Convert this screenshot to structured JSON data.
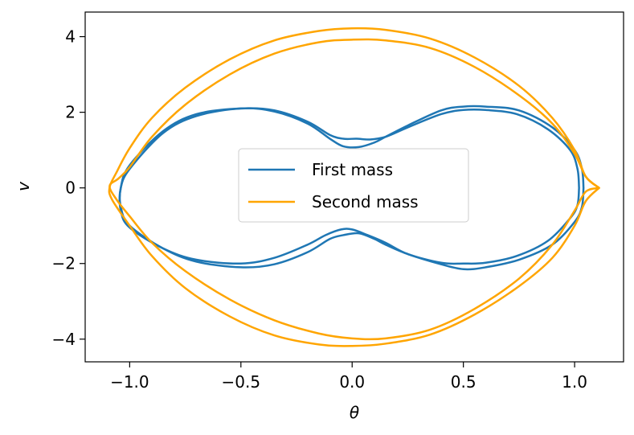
{
  "chart_data": {
    "type": "line",
    "title": "",
    "xlabel": "θ",
    "ylabel": "v",
    "xlim": [
      -1.2,
      1.22
    ],
    "ylim": [
      -4.6,
      4.65
    ],
    "x_ticks": [
      -1.0,
      -0.5,
      0.0,
      0.5,
      1.0
    ],
    "x_tick_labels": [
      "−1.0",
      "−0.5",
      "0.0",
      "0.5",
      "1.0"
    ],
    "y_ticks": [
      -4,
      -2,
      0,
      2,
      4
    ],
    "y_tick_labels": [
      "−4",
      "−2",
      "0",
      "2",
      "4"
    ],
    "grid": false,
    "legend_position": "center",
    "series": [
      {
        "name": "First mass",
        "color": "#1f77b4",
        "loops": [
          {
            "x": [
              1.04,
              1.033,
              1.0,
              0.9,
              0.75,
              0.6,
              0.5,
              0.4,
              0.25,
              0.15,
              0.1,
              0.03,
              -0.04,
              -0.1,
              -0.2,
              -0.35,
              -0.5,
              -0.7,
              -0.85,
              -1.0,
              -1.04,
              -1.04,
              -1.0,
              -0.85,
              -0.7,
              -0.5,
              -0.35,
              -0.2,
              -0.1,
              -0.04,
              0.03,
              0.1,
              0.15,
              0.25,
              0.4,
              0.5,
              0.6,
              0.75,
              0.9,
              1.0,
              1.033,
              1.04
            ],
            "y": [
              0,
              0.5,
              1.0,
              1.6,
              2.05,
              2.15,
              2.15,
              2.05,
              1.65,
              1.35,
              1.2,
              1.08,
              1.1,
              1.3,
              1.7,
              2.02,
              2.1,
              1.9,
              1.45,
              0.5,
              0,
              -0.5,
              -1.0,
              -1.6,
              -1.95,
              -2.1,
              -2.02,
              -1.7,
              -1.35,
              -1.25,
              -1.2,
              -1.35,
              -1.5,
              -1.75,
              -2.02,
              -2.15,
              -2.1,
              -1.9,
              -1.5,
              -0.9,
              -0.5,
              0
            ]
          },
          {
            "x": [
              1.02,
              1.013,
              0.98,
              0.88,
              0.74,
              0.6,
              0.5,
              0.4,
              0.25,
              0.15,
              0.08,
              0.02,
              -0.04,
              -0.1,
              -0.2,
              -0.35,
              -0.5,
              -0.7,
              -0.85,
              -1.0,
              -1.04,
              -1.04,
              -1.0,
              -0.85,
              -0.7,
              -0.5,
              -0.35,
              -0.2,
              -0.12,
              -0.05,
              0.0,
              0.07,
              0.15,
              0.25,
              0.4,
              0.5,
              0.6,
              0.74,
              0.88,
              0.98,
              1.013,
              1.02
            ],
            "y": [
              0,
              0.5,
              1.0,
              1.55,
              1.95,
              2.06,
              2.06,
              1.95,
              1.6,
              1.35,
              1.28,
              1.3,
              1.3,
              1.4,
              1.75,
              2.05,
              2.1,
              1.95,
              1.5,
              0.6,
              0,
              -0.6,
              -1.05,
              -1.6,
              -1.9,
              -2.0,
              -1.85,
              -1.5,
              -1.25,
              -1.1,
              -1.1,
              -1.25,
              -1.45,
              -1.75,
              -1.98,
              -2.0,
              -1.98,
              -1.8,
              -1.4,
              -0.8,
              -0.45,
              0
            ]
          }
        ]
      },
      {
        "name": "Second mass",
        "color": "#ffa500",
        "loops": [
          {
            "x": [
              1.11,
              1.05,
              1.0,
              0.9,
              0.75,
              0.55,
              0.35,
              0.15,
              0.0,
              -0.15,
              -0.35,
              -0.55,
              -0.75,
              -0.9,
              -1.0,
              -1.06,
              -1.09,
              -1.08,
              -1.0,
              -0.9,
              -0.75,
              -0.55,
              -0.35,
              -0.15,
              0.0,
              0.15,
              0.35,
              0.55,
              0.75,
              0.9,
              1.0,
              1.05,
              1.11
            ],
            "y": [
              0,
              0.3,
              1.0,
              1.85,
              2.7,
              3.45,
              3.95,
              4.18,
              4.22,
              4.15,
              3.9,
              3.4,
              2.65,
              1.85,
              1.05,
              0.4,
              0.02,
              -0.3,
              -1.0,
              -1.8,
              -2.65,
              -3.4,
              -3.9,
              -4.14,
              -4.18,
              -4.12,
              -3.88,
              -3.35,
              -2.6,
              -1.85,
              -1.0,
              -0.35,
              0
            ]
          },
          {
            "x": [
              1.11,
              1.05,
              1.0,
              0.9,
              0.75,
              0.55,
              0.35,
              0.15,
              0.0,
              -0.15,
              -0.35,
              -0.55,
              -0.75,
              -0.9,
              -1.0,
              -1.06,
              -1.09,
              -1.05,
              -1.0,
              -0.9,
              -0.75,
              -0.55,
              -0.35,
              -0.15,
              0.0,
              0.15,
              0.35,
              0.55,
              0.75,
              0.9,
              1.0,
              1.05,
              1.11
            ],
            "y": [
              0,
              -0.1,
              -0.6,
              -1.5,
              -2.4,
              -3.2,
              -3.75,
              -3.98,
              -3.98,
              -3.85,
              -3.5,
              -2.95,
              -2.2,
              -1.45,
              -0.75,
              -0.3,
              0.05,
              0.25,
              0.55,
              1.35,
              2.2,
              3.0,
              3.55,
              3.85,
              3.92,
              3.9,
              3.7,
              3.2,
              2.45,
              1.7,
              0.9,
              0.3,
              0
            ]
          }
        ]
      }
    ]
  }
}
